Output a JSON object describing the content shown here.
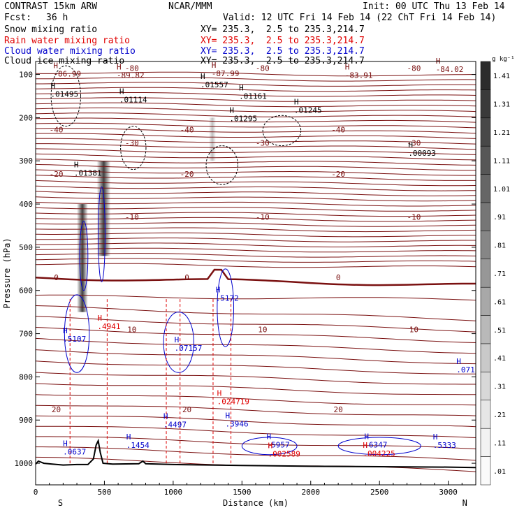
{
  "header": {
    "model": "CONTRAST 15km ARW",
    "center": "NCAR/MMM",
    "init": "Init: 00 UTC Thu 13 Feb 14",
    "fcst_label": "Fcst:",
    "fcst_value": "36 h",
    "valid": "Valid: 12 UTC Fri 14 Feb 14 (22 ChT Fri 14 Feb 14)"
  },
  "fields": [
    {
      "name": "Snow mixing ratio",
      "xy": "",
      "color": "#000000"
    },
    {
      "name": "Rain water mixing ratio",
      "xy": "XY= 235.3,  2.5 to 235.3,214.7",
      "color": "#e00000"
    },
    {
      "name": "Cloud water mixing ratio",
      "xy": "XY= 235.3,  2.5 to 235.3,214.7",
      "color": "#0000cc"
    },
    {
      "name": "Cloud ice mixing ratio",
      "xy": "XY= 235.3,  2.5 to 235.3,214.7",
      "color": "#000000"
    }
  ],
  "snow_xy": "XY= 235.3,  2.5 to 235.3,214.7",
  "chart_data": {
    "type": "line",
    "xlabel": "Distance (km)",
    "ylabel": "Pressure (hPa)",
    "xlim": [
      0,
      3200
    ],
    "ylim": [
      1050,
      70
    ],
    "x_ticks": [
      "0",
      "500",
      "1000",
      "1500",
      "2000",
      "2500",
      "3000"
    ],
    "y_ticks": [
      "100",
      "200",
      "300",
      "400",
      "500",
      "600",
      "700",
      "800",
      "900",
      "1000"
    ],
    "x_end_labels": {
      "left": "S",
      "right": "N"
    },
    "temperature_contours": {
      "color": "#7a1010",
      "levels": [
        {
          "label": "-80",
          "p": 85
        },
        {
          "label": "-40",
          "p": 228
        },
        {
          "label": "-30",
          "p": 258
        },
        {
          "label": "-20",
          "p": 330
        },
        {
          "label": "-10",
          "p": 430
        },
        {
          "label": "0",
          "p": 570
        },
        {
          "label": "10",
          "p": 690
        },
        {
          "label": "20",
          "p": 875
        }
      ]
    },
    "h_labels": [
      {
        "text": "-86.99",
        "x": 200,
        "p": 103,
        "color": "#7a1010"
      },
      {
        "text": "-89.82",
        "x": 660,
        "p": 106,
        "color": "#7a1010"
      },
      {
        "text": "-87.99",
        "x": 1350,
        "p": 102,
        "color": "#7a1010"
      },
      {
        "text": "-83.91",
        "x": 2320,
        "p": 106,
        "color": "#7a1010"
      },
      {
        "text": "-84.02",
        "x": 2980,
        "p": 93,
        "color": "#7a1010"
      },
      {
        "text": ".01495",
        "x": 180,
        "p": 150,
        "color": "#000000"
      },
      {
        "text": ".01557",
        "x": 1270,
        "p": 128,
        "color": "#000000"
      },
      {
        "text": ".01114",
        "x": 680,
        "p": 163,
        "color": "#000000"
      },
      {
        "text": ".01161",
        "x": 1550,
        "p": 155,
        "color": "#000000"
      },
      {
        "text": ".01295",
        "x": 1480,
        "p": 207,
        "color": "#000000"
      },
      {
        "text": ".01245",
        "x": 1950,
        "p": 187,
        "color": "#000000"
      },
      {
        "text": ".00093",
        "x": 2780,
        "p": 287,
        "color": "#000000"
      },
      {
        "text": ".01381",
        "x": 350,
        "p": 333,
        "color": "#000000"
      },
      {
        "text": ".5172",
        "x": 1380,
        "p": 622,
        "color": "#0000cc"
      },
      {
        "text": ".5107",
        "x": 270,
        "p": 717,
        "color": "#0000cc"
      },
      {
        "text": ".4941",
        "x": 520,
        "p": 688,
        "color": "#e00000"
      },
      {
        "text": ".07157",
        "x": 1080,
        "p": 738,
        "color": "#0000cc"
      },
      {
        "text": ".024719",
        "x": 1390,
        "p": 862,
        "color": "#e00000"
      },
      {
        "text": ".4497",
        "x": 1000,
        "p": 915,
        "color": "#0000cc"
      },
      {
        "text": ".3946",
        "x": 1450,
        "p": 913,
        "color": "#0000cc"
      },
      {
        "text": ".1454",
        "x": 730,
        "p": 963,
        "color": "#0000cc"
      },
      {
        "text": ".0637",
        "x": 270,
        "p": 978,
        "color": "#0000cc"
      },
      {
        "text": ".5957",
        "x": 1750,
        "p": 962,
        "color": "#0000cc"
      },
      {
        "text": ".002589",
        "x": 1760,
        "p": 983,
        "color": "#e00000"
      },
      {
        "text": ".6347",
        "x": 2460,
        "p": 962,
        "color": "#0000cc"
      },
      {
        "text": ".004225",
        "x": 2450,
        "p": 982,
        "color": "#e00000"
      },
      {
        "text": ".5333",
        "x": 2960,
        "p": 963,
        "color": "#0000cc"
      },
      {
        "text": ".071",
        "x": 3130,
        "p": 788,
        "color": "#0000cc"
      }
    ],
    "colorbar": {
      "unit": "g kg⁻¹",
      "levels": [
        "1.41",
        "1.31",
        "1.21",
        "1.11",
        "1.01",
        ".91",
        ".81",
        ".71",
        ".61",
        ".51",
        ".41",
        ".31",
        ".21",
        ".11",
        ".01"
      ],
      "shades": [
        "#2c2c2c",
        "#3a3a3a",
        "#484848",
        "#575757",
        "#666666",
        "#767676",
        "#868686",
        "#979797",
        "#a8a8a8",
        "#b9b9b9",
        "#c9c9c9",
        "#d8d8d8",
        "#e6e6e6",
        "#f2f2f2",
        "#fafafa"
      ]
    },
    "terrain": [
      [
        0,
        1002
      ],
      [
        20,
        995
      ],
      [
        60,
        1000
      ],
      [
        120,
        1002
      ],
      [
        200,
        1004
      ],
      [
        300,
        1003
      ],
      [
        380,
        1003
      ],
      [
        420,
        990
      ],
      [
        440,
        958
      ],
      [
        455,
        948
      ],
      [
        470,
        975
      ],
      [
        490,
        1000
      ],
      [
        560,
        1002
      ],
      [
        750,
        1001
      ],
      [
        780,
        995
      ],
      [
        800,
        1001
      ],
      [
        1000,
        1003
      ],
      [
        1500,
        1005
      ],
      [
        2000,
        1007
      ],
      [
        2500,
        1008
      ],
      [
        3000,
        1009
      ],
      [
        3200,
        1010
      ]
    ]
  }
}
